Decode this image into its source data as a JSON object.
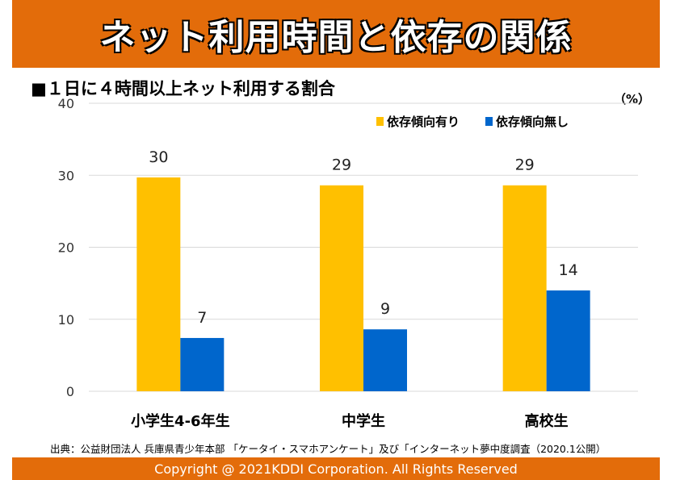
{
  "title": "ネット利用時間と依存の関係",
  "subtitle": "■１日に４時間以上ネット利用する割合",
  "unit": "（%）",
  "source": "出典：公益財団法人 兵庫県青少年本部 「ケータイ・スマホアンケート」及び「インターネット夢中度調査（2020.1公開）",
  "copyright": "Copyright @ 2021KDDI Corporation. All Rights Reserved",
  "colors": {
    "header": "#e36c0a",
    "dependent": "#ffc000",
    "not_dependent": "#0066cc"
  },
  "chart_data": {
    "type": "bar",
    "categories": [
      "小学生4-6年生",
      "中学生",
      "高校生"
    ],
    "series": [
      {
        "name": "依存傾向有り",
        "values": [
          29.7,
          28.6,
          28.6
        ],
        "labels": [
          "30",
          "29",
          "29"
        ],
        "color": "#ffc000"
      },
      {
        "name": "依存傾向無し",
        "values": [
          7.4,
          8.6,
          14.0
        ],
        "labels": [
          "7",
          "9",
          "14"
        ],
        "color": "#0066cc"
      }
    ],
    "ylim": [
      0,
      40
    ],
    "yticks": [
      "0",
      "10",
      "20",
      "30",
      "40"
    ],
    "grid": true,
    "legend": "top-right"
  }
}
